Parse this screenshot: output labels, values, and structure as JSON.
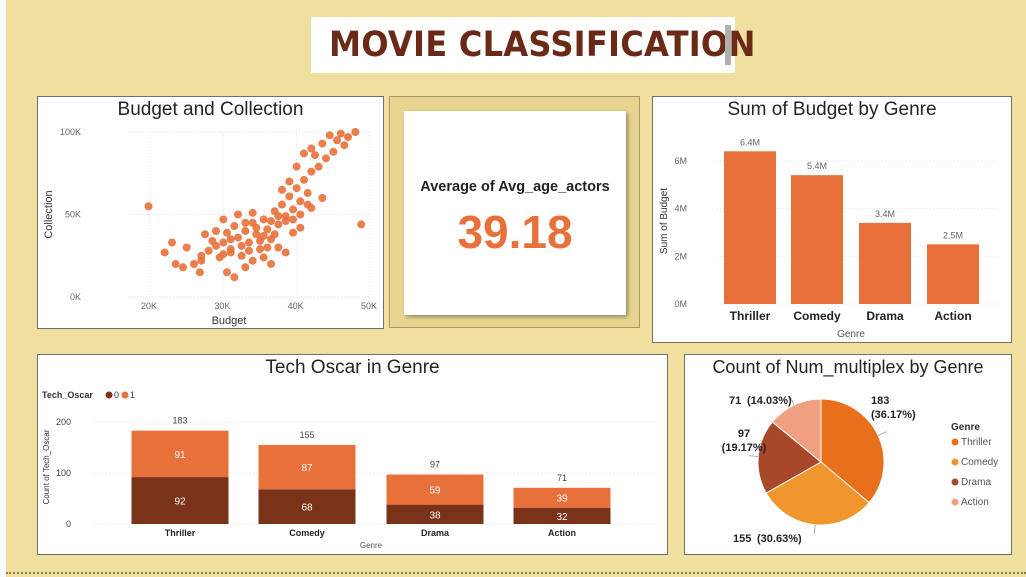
{
  "header": {
    "title": "MOVIE CLASSIFICATION"
  },
  "colors": {
    "orange": "#e8703a",
    "dark_brown": "#7a3219",
    "thriller": "#e8701c",
    "comedy": "#f0962c",
    "drama": "#a8482a",
    "action": "#f0a080"
  },
  "kpi": {
    "label": "Average of Avg_age_actors",
    "value": "39.18"
  },
  "chart_data": [
    {
      "id": "scatter",
      "type": "scatter",
      "title": "Budget and Collection",
      "xlabel": "Budget",
      "ylabel": "Collection",
      "xlim": [
        17000,
        50000
      ],
      "ylim": [
        0,
        100000
      ],
      "xticks": [
        "20K",
        "30K",
        "40K",
        "50K"
      ],
      "yticks": [
        "0K",
        "50K",
        "100K"
      ],
      "points": [
        [
          19800,
          55000
        ],
        [
          22000,
          27000
        ],
        [
          23500,
          20000
        ],
        [
          23000,
          33000
        ],
        [
          24500,
          18000
        ],
        [
          26000,
          20000
        ],
        [
          27000,
          22000
        ],
        [
          27500,
          38000
        ],
        [
          26800,
          15000
        ],
        [
          28000,
          28000
        ],
        [
          29000,
          31000
        ],
        [
          29500,
          24000
        ],
        [
          30000,
          33000
        ],
        [
          30500,
          39000
        ],
        [
          31000,
          27000
        ],
        [
          31500,
          43000
        ],
        [
          32000,
          36000
        ],
        [
          32500,
          25000
        ],
        [
          33000,
          40000
        ],
        [
          33500,
          33000
        ],
        [
          34000,
          45000
        ],
        [
          34500,
          38000
        ],
        [
          35000,
          29000
        ],
        [
          35500,
          47000
        ],
        [
          36000,
          41000
        ],
        [
          36500,
          35000
        ],
        [
          37000,
          52000
        ],
        [
          37500,
          44000
        ],
        [
          38000,
          56000
        ],
        [
          38500,
          49000
        ],
        [
          39000,
          61000
        ],
        [
          39500,
          53000
        ],
        [
          40000,
          66000
        ],
        [
          40500,
          58000
        ],
        [
          41000,
          71000
        ],
        [
          41500,
          63000
        ],
        [
          42000,
          76000
        ],
        [
          42500,
          86000
        ],
        [
          43000,
          79000
        ],
        [
          43500,
          93000
        ],
        [
          44000,
          84000
        ],
        [
          44500,
          98000
        ],
        [
          45000,
          88000
        ],
        [
          45500,
          95000
        ],
        [
          46000,
          99000
        ],
        [
          46500,
          92000
        ],
        [
          47000,
          97000
        ],
        [
          48000,
          100000
        ],
        [
          48800,
          44000
        ],
        [
          30500,
          15000
        ],
        [
          31500,
          12000
        ],
        [
          33000,
          18000
        ],
        [
          34000,
          22000
        ],
        [
          35500,
          24000
        ],
        [
          36500,
          20000
        ],
        [
          37500,
          30000
        ],
        [
          38500,
          27000
        ],
        [
          39500,
          39000
        ],
        [
          40500,
          42000
        ],
        [
          42000,
          54000
        ],
        [
          43500,
          60000
        ],
        [
          30000,
          47000
        ],
        [
          29000,
          40000
        ],
        [
          32000,
          50000
        ],
        [
          28500,
          34000
        ],
        [
          31000,
          35000
        ],
        [
          33500,
          28000
        ],
        [
          34500,
          42000
        ],
        [
          35500,
          37000
        ],
        [
          36500,
          46000
        ],
        [
          37500,
          49000
        ],
        [
          38500,
          46000
        ],
        [
          39500,
          47000
        ],
        [
          40500,
          50000
        ],
        [
          41500,
          56000
        ],
        [
          40000,
          79000
        ],
        [
          41000,
          87000
        ],
        [
          42000,
          90000
        ],
        [
          39000,
          70000
        ],
        [
          38000,
          65000
        ],
        [
          27000,
          25000
        ],
        [
          25000,
          30000
        ],
        [
          33000,
          45000
        ],
        [
          34000,
          51000
        ],
        [
          35000,
          34000
        ],
        [
          36000,
          30000
        ],
        [
          37000,
          38000
        ],
        [
          32500,
          31000
        ],
        [
          31000,
          29000
        ],
        [
          30000,
          26000
        ]
      ]
    },
    {
      "id": "budget_by_genre",
      "type": "bar",
      "title": "Sum of Budget by Genre",
      "xlabel": "Genre",
      "ylabel": "Sum of Budget",
      "ylim": [
        0,
        7000000
      ],
      "yticks": [
        "0M",
        "2M",
        "4M",
        "6M"
      ],
      "categories": [
        "Thriller",
        "Comedy",
        "Drama",
        "Action"
      ],
      "values": [
        6400000,
        5400000,
        3400000,
        2500000
      ],
      "data_labels": [
        "6.4M",
        "5.4M",
        "3.4M",
        "2.5M"
      ]
    },
    {
      "id": "tech_oscar",
      "type": "bar",
      "stacked": true,
      "title": "Tech Oscar in Genre",
      "xlabel": "Genre",
      "ylabel": "Count of Tech_Oscar",
      "legend_title": "Tech_Oscar",
      "ylim": [
        0,
        200
      ],
      "yticks": [
        "0",
        "100",
        "200"
      ],
      "categories": [
        "Thriller",
        "Comedy",
        "Drama",
        "Action"
      ],
      "series": [
        {
          "name": "0",
          "values": [
            92,
            68,
            38,
            32
          ]
        },
        {
          "name": "1",
          "values": [
            91,
            87,
            59,
            39
          ]
        }
      ],
      "totals": [
        183,
        155,
        97,
        71
      ]
    },
    {
      "id": "multiplex_pie",
      "type": "pie",
      "title": "Count of Num_multiplex by Genre",
      "legend_title": "Genre",
      "categories": [
        "Thriller",
        "Comedy",
        "Drama",
        "Action"
      ],
      "values": [
        183,
        155,
        97,
        71
      ],
      "labels_count": [
        "183",
        "155",
        "97",
        "71"
      ],
      "labels_pct": [
        "(36.17%)",
        "(30.63%)",
        "(19.17%)",
        "(14.03%)"
      ]
    }
  ]
}
